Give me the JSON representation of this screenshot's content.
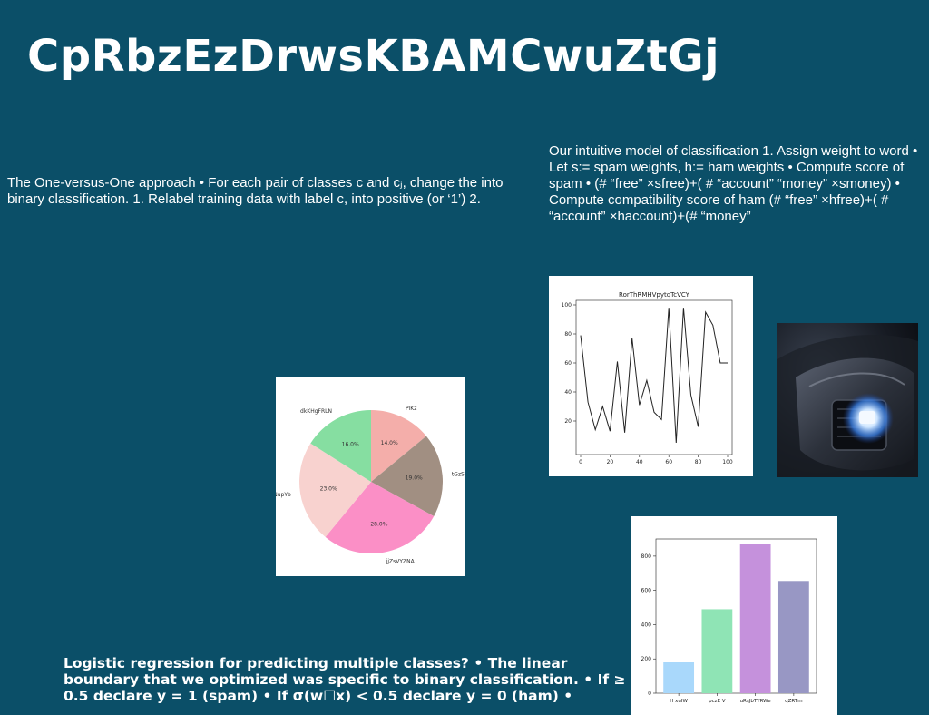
{
  "slide": {
    "title": "CpRbzEzDrwsKBAMCwuZtGj",
    "text_left": "The One-versus-One approach • For each pair of classes c and cⱼ, change the into binary classification. 1. Relabel training data with label c, into positive (or ‘1’) 2.",
    "text_right": "Our intuitive model of classification 1. Assign weight to word • Let s:= spam weights, h:= ham weights • Compute score of spam • (# “free” ×sfree)+( # “account” “money” ×smoney) • Compute compatibility score of ham (# “free” ×hfree)+( # “account” ×haccount)+(# “money”",
    "text_bottom": "Logistic regression for predicting multiple classes? • The linear boundary that we optimized was specific to binary classification. • If ≥ 0.5 declare y = 1 (spam) • If σ(w☐x) < 0.5 declare y = 0 (ham) •",
    "colors": {
      "background": "#0b4f68",
      "text": "#ffffff"
    },
    "photo": {
      "icon": "car-headlight-photo"
    }
  },
  "chart_data": [
    {
      "type": "pie",
      "title": "",
      "labels": [
        "PlKz",
        "tGzSEPXu",
        "jjZsVYZNA",
        "wXNhNupYb",
        "dkKHgFRLN"
      ],
      "values": [
        14.0,
        19.0,
        28.0,
        23.0,
        16.0
      ],
      "value_labels": [
        "14.0%",
        "19.0%",
        "28.0%",
        "23.0%",
        "16.0%"
      ],
      "colors": [
        "#f4aeaa",
        "#a18f82",
        "#fb8fc6",
        "#f8d2cf",
        "#86dea1"
      ]
    },
    {
      "type": "line",
      "title": "RorThRMHVpytqTcVCY",
      "x": [
        0,
        5,
        10,
        15,
        20,
        25,
        30,
        35,
        40,
        45,
        50,
        55,
        60,
        65,
        70,
        75,
        80,
        85,
        90,
        95,
        100
      ],
      "y": [
        79,
        33,
        14,
        30,
        13,
        61,
        12,
        77,
        31,
        48,
        26,
        21,
        98,
        5,
        98,
        38,
        16,
        95,
        86,
        60,
        60
      ],
      "xlim": [
        0,
        100
      ],
      "ylim": [
        0,
        100
      ],
      "xticks": [
        0,
        20,
        40,
        60,
        80,
        100
      ],
      "yticks": [
        20,
        40,
        60,
        80,
        100
      ],
      "color": "#222222"
    },
    {
      "type": "bar",
      "title": "",
      "categories": [
        "H xuIW",
        "pczE V",
        "uRsJbTYRWe",
        "qZRTm"
      ],
      "values": [
        180,
        490,
        870,
        655
      ],
      "ylim": [
        0,
        900
      ],
      "yticks": [
        0,
        200,
        400,
        600,
        800
      ],
      "colors": [
        "#a9d8fb",
        "#8fe4b5",
        "#c591dc",
        "#9897c4"
      ]
    }
  ]
}
